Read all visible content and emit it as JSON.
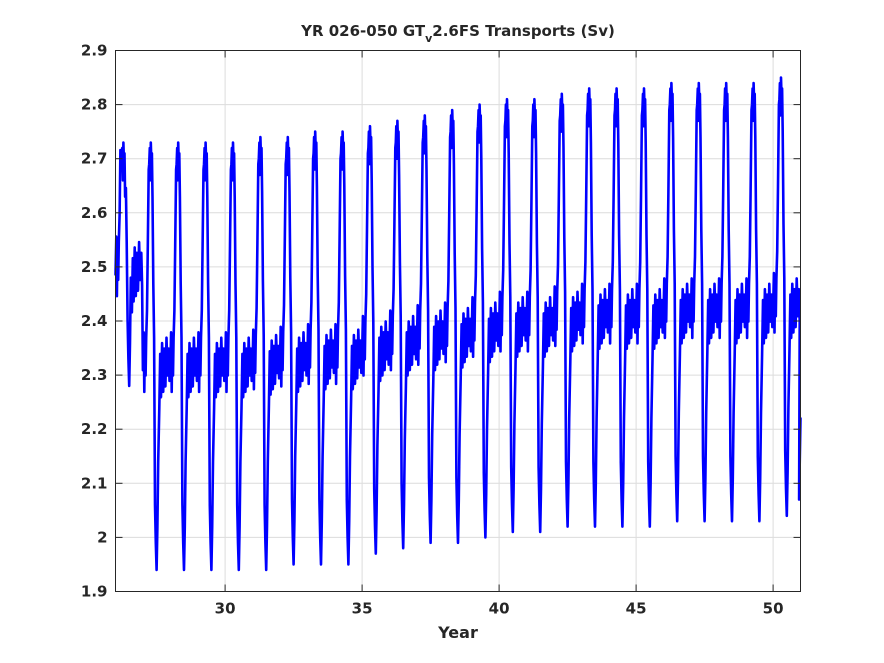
{
  "chart_data": {
    "type": "line",
    "title_main": "YR 026-050 GT",
    "title_sub": "v",
    "title_rest": "2.6FS Transports (Sv)",
    "xlabel": "Year",
    "ylabel": "",
    "xlim": [
      26,
      51
    ],
    "ylim": [
      1.9,
      2.9
    ],
    "xticks": [
      30,
      35,
      40,
      45,
      50
    ],
    "xtick_labels": [
      "30",
      "35",
      "40",
      "45",
      "50"
    ],
    "yticks": [
      1.9,
      2.0,
      2.1,
      2.2,
      2.3,
      2.4,
      2.5,
      2.6,
      2.7,
      2.8,
      2.9
    ],
    "ytick_labels": [
      "1.9",
      "2",
      "2.1",
      "2.2",
      "2.3",
      "2.4",
      "2.5",
      "2.6",
      "2.7",
      "2.8",
      "2.9"
    ],
    "grid": true,
    "series": [
      {
        "color": "#0000ff",
        "cycle_years": [
          26,
          27,
          28,
          29,
          30,
          31,
          32,
          33,
          34,
          35,
          36,
          37,
          38,
          39,
          40,
          41,
          42,
          43,
          44,
          45,
          46,
          47,
          48,
          49,
          50
        ],
        "annual_max": [
          2.73,
          2.73,
          2.73,
          2.73,
          2.73,
          2.74,
          2.74,
          2.75,
          2.75,
          2.76,
          2.77,
          2.78,
          2.79,
          2.8,
          2.81,
          2.81,
          2.82,
          2.83,
          2.83,
          2.83,
          2.84,
          2.84,
          2.84,
          2.84,
          2.85
        ],
        "annual_min": [
          2.28,
          1.94,
          1.94,
          1.94,
          1.94,
          1.94,
          1.95,
          1.95,
          1.95,
          1.97,
          1.98,
          1.99,
          1.99,
          2.0,
          2.01,
          2.01,
          2.02,
          2.02,
          2.02,
          2.02,
          2.03,
          2.03,
          2.03,
          2.03,
          2.04
        ],
        "end_value": 2.22
      }
    ]
  }
}
